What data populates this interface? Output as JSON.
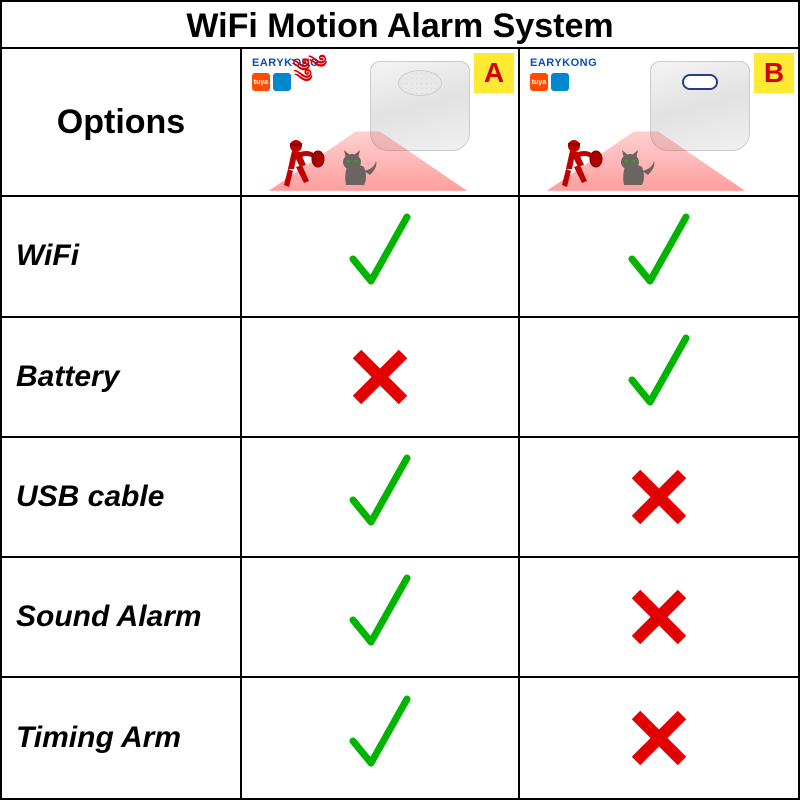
{
  "title": "WiFi Motion Alarm System",
  "options_header": "Options",
  "brand": "EARYKONG",
  "tuya": "tuya",
  "products": {
    "A": {
      "badge": "A",
      "badge_bg": "#ffe933",
      "badge_color": "#d40000",
      "has_speaker": true
    },
    "B": {
      "badge": "B",
      "badge_bg": "#ffe933",
      "badge_color": "#d40000",
      "has_speaker": false
    }
  },
  "rows": [
    {
      "label": "WiFi",
      "A": true,
      "B": true
    },
    {
      "label": "Battery",
      "A": false,
      "B": true
    },
    {
      "label": "USB cable",
      "A": true,
      "B": false
    },
    {
      "label": "Sound Alarm",
      "A": true,
      "B": false
    },
    {
      "label": "Timing Arm",
      "A": true,
      "B": false
    }
  ],
  "colors": {
    "check": "#00b400",
    "cross": "#e20000",
    "border": "#000000",
    "beam": "rgba(255,0,0,0.3)"
  },
  "label_fontsize": 30,
  "title_fontsize": 34
}
